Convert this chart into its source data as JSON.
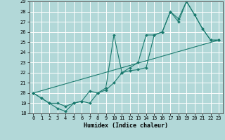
{
  "xlabel": "Humidex (Indice chaleur)",
  "ylabel": "",
  "xlim": [
    -0.5,
    23.5
  ],
  "ylim": [
    18,
    29
  ],
  "xticks": [
    0,
    1,
    2,
    3,
    4,
    5,
    6,
    7,
    8,
    9,
    10,
    11,
    12,
    13,
    14,
    15,
    16,
    17,
    18,
    19,
    20,
    21,
    22,
    23
  ],
  "yticks": [
    18,
    19,
    20,
    21,
    22,
    23,
    24,
    25,
    26,
    27,
    28,
    29
  ],
  "background_color": "#b2d8d8",
  "grid_color": "#d0e8e8",
  "line_color": "#1a7a6e",
  "line1_x": [
    0,
    1,
    2,
    3,
    4,
    5,
    6,
    7,
    8,
    9,
    10,
    11,
    12,
    13,
    14,
    15,
    16,
    17,
    18,
    19,
    20,
    21,
    22,
    23
  ],
  "line1_y": [
    20.0,
    19.5,
    19.0,
    18.5,
    18.2,
    19.0,
    19.2,
    20.2,
    20.0,
    20.5,
    25.7,
    22.0,
    22.5,
    23.0,
    25.7,
    25.7,
    26.0,
    28.0,
    27.3,
    29.0,
    27.7,
    26.3,
    25.2,
    25.2
  ],
  "line2_x": [
    0,
    1,
    2,
    3,
    4,
    5,
    6,
    7,
    8,
    9,
    10,
    11,
    12,
    13,
    14,
    15,
    16,
    17,
    18,
    19,
    20,
    21,
    22,
    23
  ],
  "line2_y": [
    20.0,
    19.5,
    19.0,
    19.0,
    18.7,
    19.0,
    19.2,
    19.0,
    20.0,
    20.3,
    21.0,
    22.0,
    22.2,
    22.3,
    22.5,
    25.7,
    26.0,
    28.0,
    27.0,
    29.0,
    27.7,
    26.3,
    25.2,
    25.2
  ],
  "line3_x": [
    0,
    23
  ],
  "line3_y": [
    20.0,
    25.2
  ]
}
